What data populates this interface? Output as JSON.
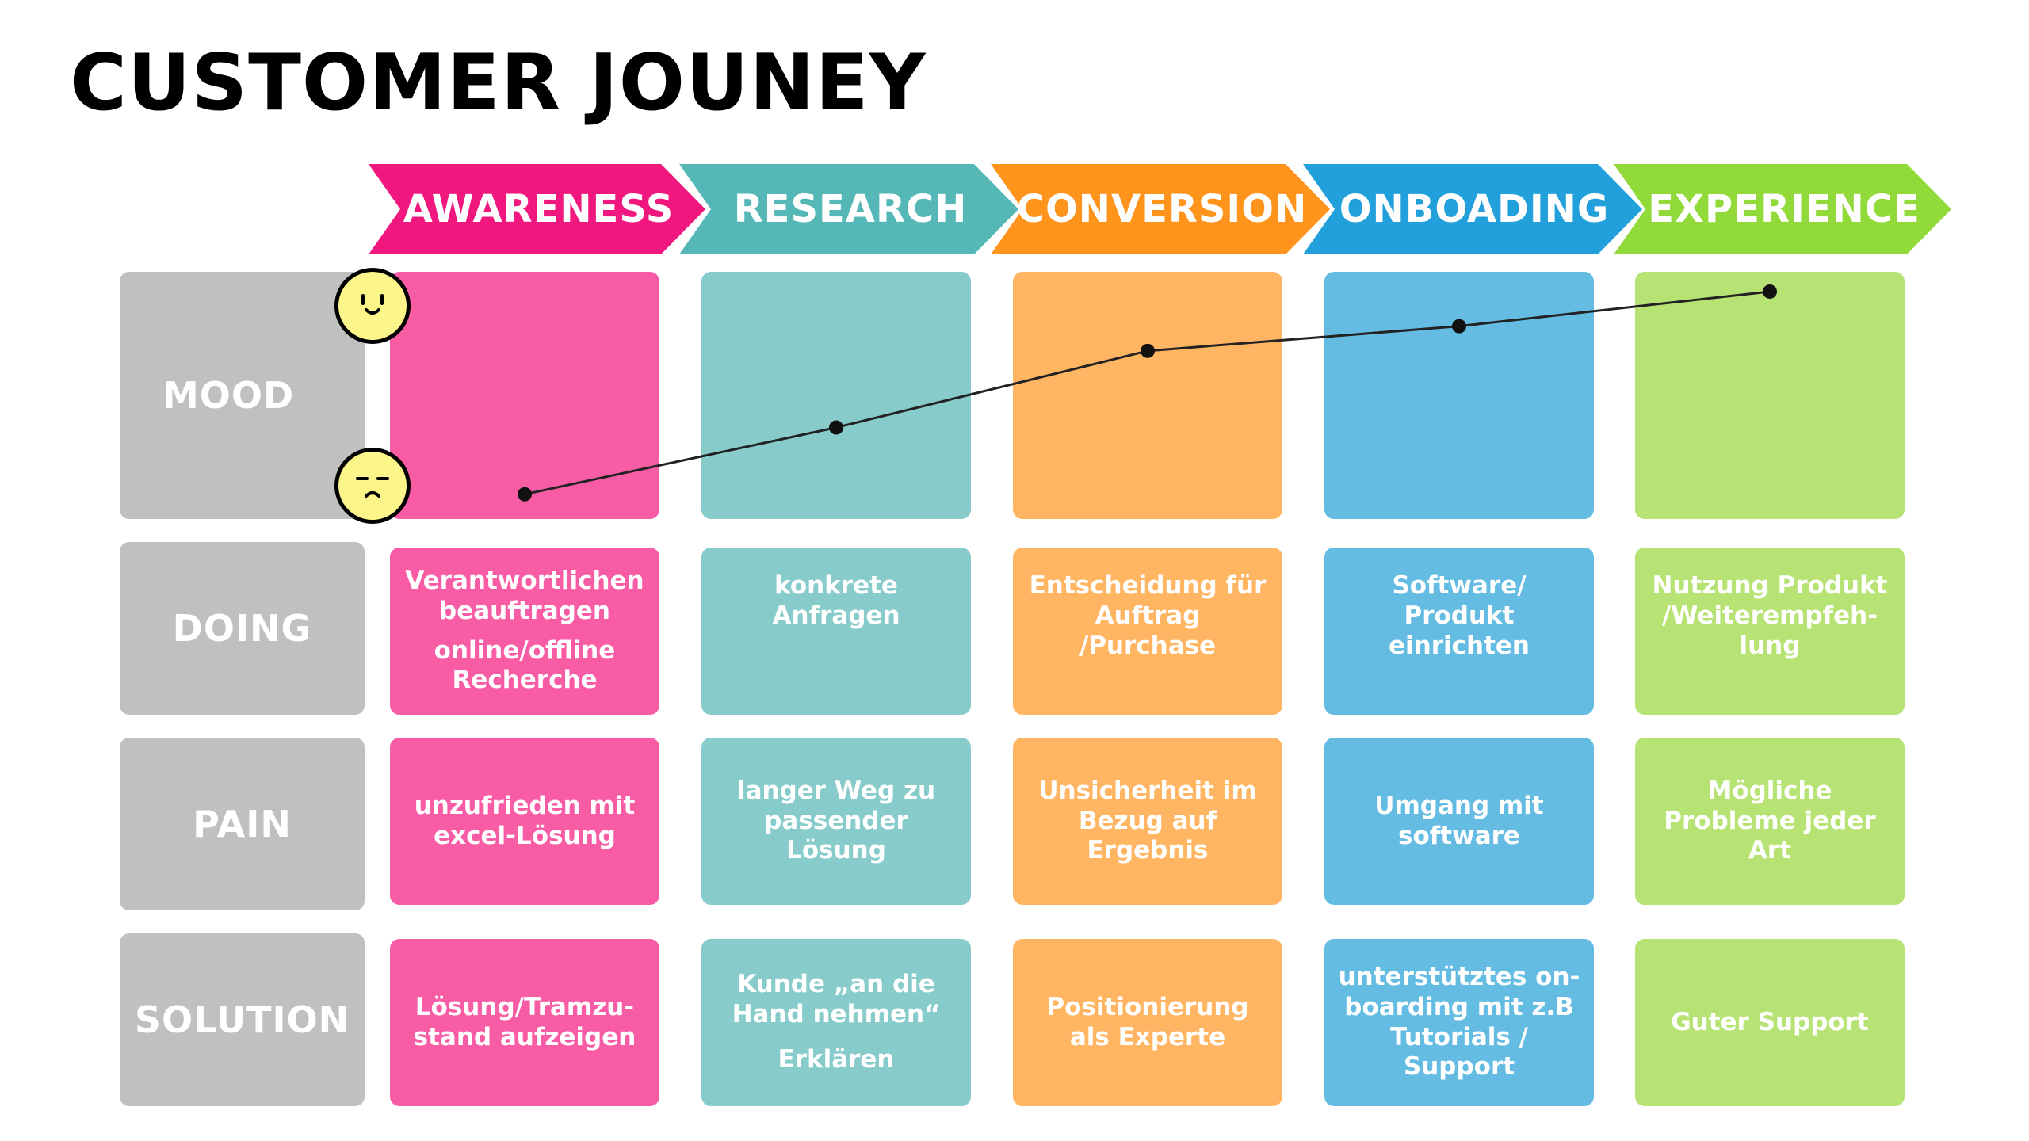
{
  "title": "CUSTOMER JOUNEY",
  "colors": {
    "pink": "#f75ca4",
    "pink_strong": "#f0177f",
    "teal": "#88cbcb",
    "teal_strong": "#56b8b6",
    "orange": "#ffb562",
    "orange_strong": "#ff941d",
    "blue": "#64bce3",
    "blue_strong": "#22a0dc",
    "green": "#b6e374",
    "green_strong": "#92d93a",
    "label_gray": "#c0c0c0",
    "face_yellow": "#fcf58a"
  },
  "stages": [
    "AWARENESS",
    "RESEARCH",
    "CONVERSION",
    "ONBOADING",
    "EXPERIENCE"
  ],
  "rows": [
    "MOOD",
    "DOING",
    "PAIN",
    "SOLUTION"
  ],
  "mood": {
    "icons": [
      "happy-face-icon",
      "unhappy-face-icon"
    ],
    "levels": [
      0.1,
      0.37,
      0.68,
      0.78,
      0.92
    ]
  },
  "doing": [
    [
      "Verantwortlichen beauftragen",
      "online/offline Recherche"
    ],
    [
      "konkrete Anfragen"
    ],
    [
      "Entscheidung für Auftrag /Purchase"
    ],
    [
      "Software/ Produkt einrichten"
    ],
    [
      "Nutzung Produkt /Weiterempfeh-lung"
    ]
  ],
  "pain": [
    [
      "unzufrieden mit excel-Lösung"
    ],
    [
      "langer Weg zu passender Lösung"
    ],
    [
      "Unsicherheit im Bezug auf Ergebnis"
    ],
    [
      "Umgang mit software"
    ],
    [
      "Mögliche Probleme jeder Art"
    ]
  ],
  "solution": [
    [
      "Lösung/Tramzu-stand aufzeigen"
    ],
    [
      "Kunde „an die Hand nehmen“",
      "Erklären"
    ],
    [
      "Positionierung als Experte"
    ],
    [
      "unterstütztes on-boarding mit z.B Tutorials / Support"
    ],
    [
      "Guter Support"
    ]
  ]
}
